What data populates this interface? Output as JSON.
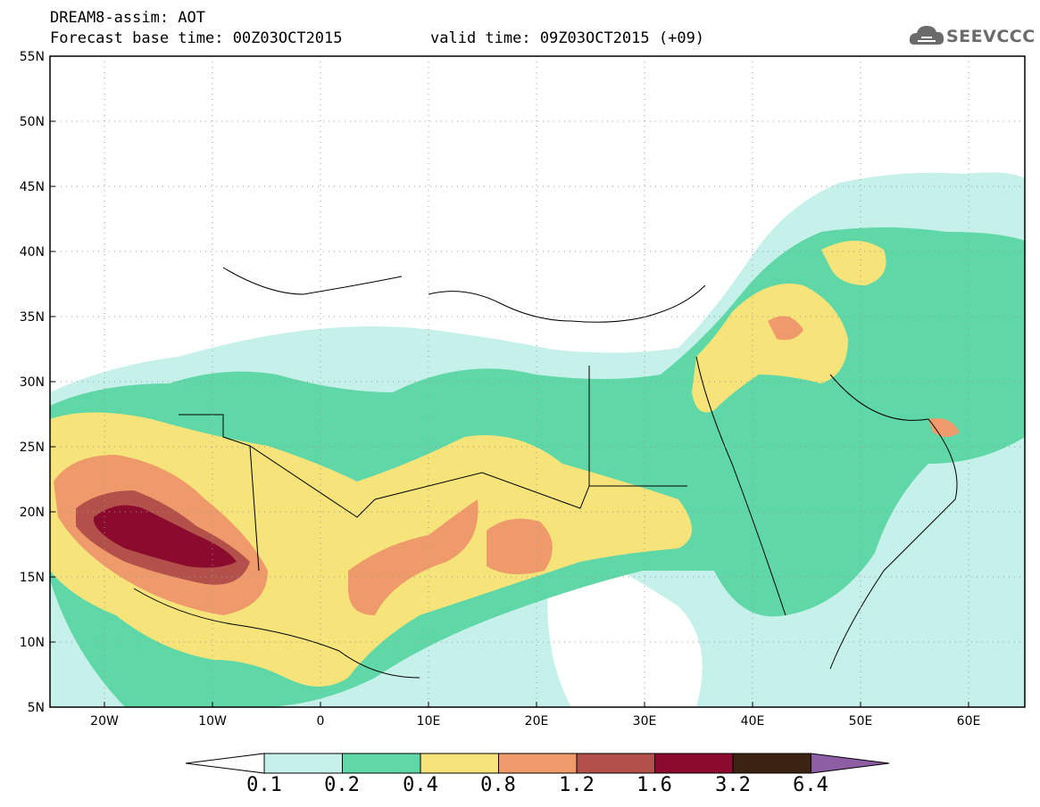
{
  "header": {
    "line1": "DREAM8-assim: AOT",
    "base_time": "Forecast base time: 00Z03OCT2015",
    "valid_time": "valid time: 09Z03OCT2015 (+09)",
    "logo_text": "SEEVCCC"
  },
  "map": {
    "variable": "AOT",
    "lon_range": [
      -25,
      65
    ],
    "lat_range": [
      5,
      55
    ],
    "lat_ticks": [
      "55N",
      "50N",
      "45N",
      "40N",
      "35N",
      "30N",
      "25N",
      "20N",
      "15N",
      "10N",
      "5N"
    ],
    "lon_ticks": [
      "20W",
      "10W",
      "0",
      "10E",
      "20E",
      "30E",
      "40E",
      "50E",
      "60E"
    ],
    "grid": "dotted"
  },
  "colorbar": {
    "levels": [
      "0.1",
      "0.2",
      "0.4",
      "0.8",
      "1.2",
      "1.6",
      "3.2",
      "6.4"
    ],
    "colors": [
      "#c6f0ea",
      "#5fd7a7",
      "#f6e47a",
      "#ef9a6a",
      "#b4504a",
      "#8a0b2e",
      "#3a2312",
      "#8e5ea5"
    ]
  }
}
